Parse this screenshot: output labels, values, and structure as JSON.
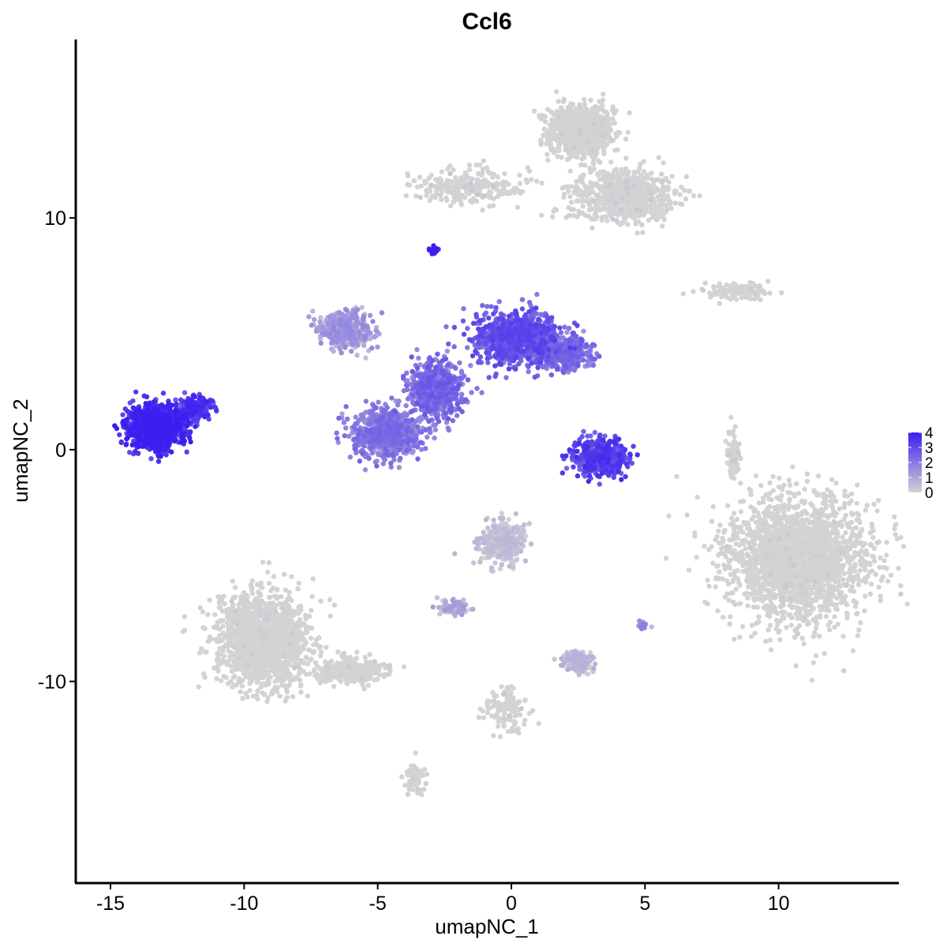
{
  "chart_data": {
    "type": "scatter",
    "title": "Ccl6",
    "xlabel": "umapNC_1",
    "ylabel": "umapNC_2",
    "xlim": [
      -16.3,
      14.5
    ],
    "ylim": [
      -18.7,
      17.7
    ],
    "x_ticks": [
      -15,
      -10,
      -5,
      0,
      5,
      10
    ],
    "x_tick_labels": [
      "-15",
      "-10",
      "-5",
      "0",
      "5",
      "10"
    ],
    "y_ticks": [
      -10,
      0,
      10
    ],
    "y_tick_labels": [
      "-10",
      "0",
      "10"
    ],
    "grid": false,
    "color_scale": {
      "low_color": "#d3d3d3",
      "high_color": "#3a1ff0",
      "min": 0,
      "max": 4,
      "ticks": [
        0,
        1,
        2,
        3,
        4
      ],
      "tick_labels": [
        "0",
        "1",
        "2",
        "3",
        "4"
      ],
      "legend_position": "right"
    },
    "clusters": [
      {
        "id": "top-right-blob",
        "center": [
          2.6,
          13.8
        ],
        "spread": [
          1.1,
          1.0
        ],
        "n": 900,
        "expr": 0.05
      },
      {
        "id": "top-right-arm",
        "center": [
          4.2,
          11.0
        ],
        "spread": [
          1.8,
          1.0
        ],
        "n": 700,
        "expr": 0.1
      },
      {
        "id": "top-left-arm",
        "center": [
          -1.5,
          11.3
        ],
        "spread": [
          2.0,
          0.7
        ],
        "n": 250,
        "expr": 0.15
      },
      {
        "id": "right-strip",
        "center": [
          8.5,
          6.8
        ],
        "spread": [
          1.1,
          0.3
        ],
        "n": 120,
        "expr": 0.05
      },
      {
        "id": "left-cluster",
        "center": [
          -13.3,
          1.0
        ],
        "spread": [
          0.9,
          0.8
        ],
        "n": 1100,
        "expr": 3.6
      },
      {
        "id": "left-cluster-arm",
        "center": [
          -11.8,
          1.8
        ],
        "spread": [
          0.5,
          0.5
        ],
        "n": 200,
        "expr": 3.2
      },
      {
        "id": "small-top",
        "center": [
          -2.9,
          8.6
        ],
        "spread": [
          0.15,
          0.15
        ],
        "n": 30,
        "expr": 3.8
      },
      {
        "id": "center-left-arm",
        "center": [
          -6.2,
          5.2
        ],
        "spread": [
          0.9,
          0.7
        ],
        "n": 450,
        "expr": 1.0
      },
      {
        "id": "center-right-arm",
        "center": [
          0.2,
          4.8
        ],
        "spread": [
          1.4,
          1.0
        ],
        "n": 900,
        "expr": 2.6
      },
      {
        "id": "center-far-right",
        "center": [
          1.9,
          4.2
        ],
        "spread": [
          0.9,
          0.6
        ],
        "n": 500,
        "expr": 2.0
      },
      {
        "id": "center-body",
        "center": [
          -2.8,
          2.6
        ],
        "spread": [
          0.9,
          1.1
        ],
        "n": 600,
        "expr": 2.1
      },
      {
        "id": "center-bottom-ring",
        "center": [
          -4.7,
          0.7
        ],
        "spread": [
          1.1,
          0.9
        ],
        "n": 800,
        "expr": 1.8
      },
      {
        "id": "center-right-small",
        "center": [
          3.3,
          -0.3
        ],
        "spread": [
          0.9,
          0.7
        ],
        "n": 450,
        "expr": 3.0
      },
      {
        "id": "right-big-blob",
        "center": [
          10.7,
          -4.7
        ],
        "spread": [
          2.4,
          2.4
        ],
        "n": 2200,
        "expr": 0.06
      },
      {
        "id": "right-vertical-strip",
        "center": [
          8.3,
          -0.2
        ],
        "spread": [
          0.2,
          1.0
        ],
        "n": 80,
        "expr": 0.1
      },
      {
        "id": "bottom-left-blob",
        "center": [
          -9.3,
          -8.2
        ],
        "spread": [
          1.5,
          1.8
        ],
        "n": 1600,
        "expr": 0.04
      },
      {
        "id": "bottom-left-tail",
        "center": [
          -6.0,
          -9.5
        ],
        "spread": [
          1.2,
          0.5
        ],
        "n": 300,
        "expr": 0.03
      },
      {
        "id": "bottom-left-down",
        "center": [
          -3.6,
          -14.2
        ],
        "spread": [
          0.35,
          0.6
        ],
        "n": 70,
        "expr": 0.05
      },
      {
        "id": "mid-bottom-cluster",
        "center": [
          -0.3,
          -4.0
        ],
        "spread": [
          0.8,
          0.8
        ],
        "n": 300,
        "expr": 0.3
      },
      {
        "id": "mid-bottom-arm",
        "center": [
          -2.2,
          -6.8
        ],
        "spread": [
          0.6,
          0.3
        ],
        "n": 80,
        "expr": 0.7
      },
      {
        "id": "mid-bottom-small",
        "center": [
          2.5,
          -9.1
        ],
        "spread": [
          0.5,
          0.4
        ],
        "n": 160,
        "expr": 0.4
      },
      {
        "id": "mid-bottom-strip",
        "center": [
          -0.2,
          -11.3
        ],
        "spread": [
          0.7,
          0.9
        ],
        "n": 120,
        "expr": 0.2
      },
      {
        "id": "small-bottom-right",
        "center": [
          4.9,
          -7.6
        ],
        "spread": [
          0.15,
          0.15
        ],
        "n": 25,
        "expr": 1.2
      }
    ]
  }
}
